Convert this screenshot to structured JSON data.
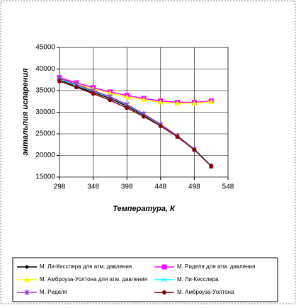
{
  "chart_data": {
    "type": "line",
    "x_label": "Температура, К",
    "y_label": "энтальпия испарения",
    "x": [
      298,
      323,
      348,
      373,
      398,
      423,
      448,
      473,
      498,
      523
    ],
    "xlim": [
      298,
      548
    ],
    "xticks": [
      298,
      348,
      398,
      448,
      498,
      548
    ],
    "ylim": [
      15000,
      45000
    ],
    "yticks": [
      15000,
      20000,
      25000,
      30000,
      35000,
      40000,
      45000
    ],
    "grid": true,
    "series": [
      {
        "name": "М. Ли-Кесслера для атм. давления",
        "color": "#000000",
        "marker": "diamond",
        "values": [
          37500,
          36000,
          34600,
          33200,
          31400,
          29300,
          27000,
          24400,
          21400,
          17600
        ]
      },
      {
        "name": "М. Риделя для атм. давления",
        "color": "#ff00ff",
        "marker": "square",
        "values": [
          38000,
          36800,
          35700,
          34700,
          33900,
          33200,
          32600,
          32300,
          32300,
          32600
        ]
      },
      {
        "name": "М. Амброуза-Уолтона для атм. давления",
        "color": "#ffff00",
        "marker": "triangle",
        "values": [
          37600,
          36500,
          35400,
          34400,
          33500,
          32900,
          32300,
          32100,
          32100,
          32400
        ]
      },
      {
        "name": "М. Ли-Кесслера",
        "color": "#00ffff",
        "marker": "x",
        "values": [
          37700,
          36200,
          34900,
          33500,
          31700,
          29500,
          27100,
          24500,
          21500,
          17600
        ]
      },
      {
        "name": "М. Риделя",
        "color": "#9933cc",
        "marker": "star",
        "values": [
          37900,
          36400,
          35000,
          33600,
          31800,
          29600,
          27200,
          24500,
          21400,
          17500
        ]
      },
      {
        "name": "М. Амброуза-Уолтона",
        "color": "#800000",
        "marker": "circle",
        "values": [
          37200,
          35800,
          34300,
          32800,
          31000,
          29000,
          26800,
          24300,
          21300,
          17500
        ]
      }
    ]
  }
}
